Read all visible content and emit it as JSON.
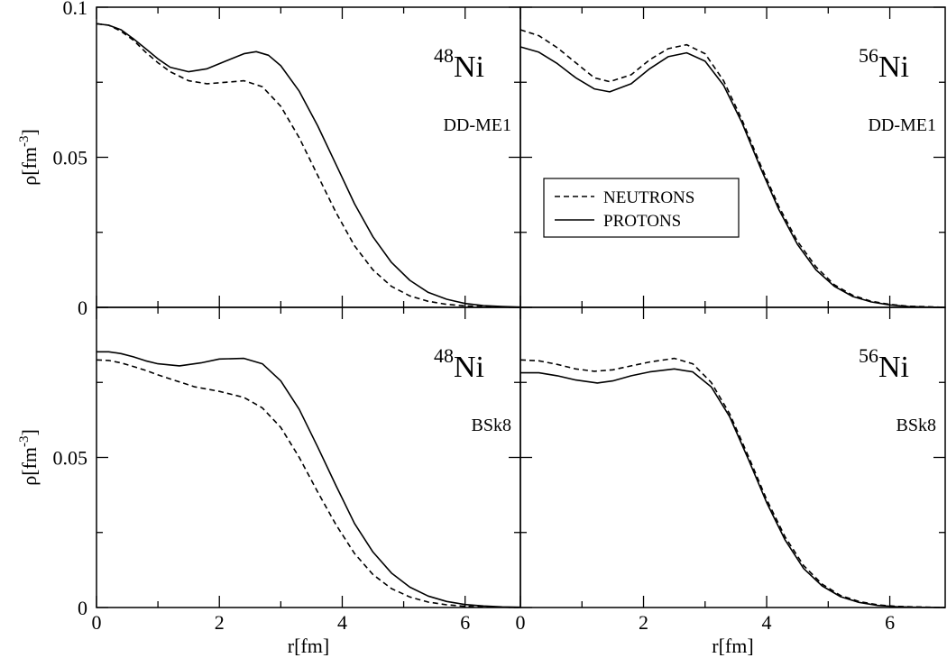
{
  "chart_data": [
    {
      "type": "line",
      "panel": "top-left",
      "mass_number": "48",
      "element": "Ni",
      "model": "DD-ME1",
      "ylabel_base": "ρ[fm",
      "ylabel_exp": "-3",
      "ylabel_close": "]",
      "xlabel": "",
      "xlim": [
        0,
        6.9
      ],
      "ylim": [
        0,
        0.1
      ],
      "xticks": [],
      "yticks": [
        "0.1",
        "0.05",
        "0"
      ],
      "grid": false,
      "series": [
        {
          "name": "NEUTRONS",
          "style": "dashed",
          "x": [
            0.0,
            0.2,
            0.4,
            0.6,
            0.8,
            1.0,
            1.2,
            1.5,
            1.8,
            2.1,
            2.4,
            2.7,
            3.0,
            3.3,
            3.6,
            3.9,
            4.2,
            4.5,
            4.8,
            5.1,
            5.4,
            5.7,
            6.0,
            6.3,
            6.6,
            6.9
          ],
          "y": [
            0.0945,
            0.094,
            0.092,
            0.089,
            0.085,
            0.0815,
            0.0785,
            0.0755,
            0.0745,
            0.075,
            0.0755,
            0.0735,
            0.067,
            0.0565,
            0.044,
            0.0315,
            0.0205,
            0.0125,
            0.007,
            0.0038,
            0.002,
            0.001,
            0.0005,
            0.0002,
            0.0001,
            0.0
          ]
        },
        {
          "name": "PROTONS",
          "style": "solid",
          "x": [
            0.0,
            0.2,
            0.4,
            0.6,
            0.8,
            1.0,
            1.2,
            1.5,
            1.8,
            2.1,
            2.4,
            2.6,
            2.8,
            3.0,
            3.3,
            3.6,
            3.9,
            4.2,
            4.5,
            4.8,
            5.1,
            5.4,
            5.7,
            6.0,
            6.3,
            6.6,
            6.9
          ],
          "y": [
            0.0945,
            0.094,
            0.0925,
            0.0895,
            0.0862,
            0.0828,
            0.08,
            0.0785,
            0.0795,
            0.082,
            0.0845,
            0.0852,
            0.084,
            0.0805,
            0.072,
            0.0605,
            0.0475,
            0.0345,
            0.0235,
            0.015,
            0.009,
            0.005,
            0.0027,
            0.0013,
            0.0006,
            0.0003,
            0.0001
          ]
        }
      ]
    },
    {
      "type": "line",
      "panel": "top-right",
      "mass_number": "56",
      "element": "Ni",
      "model": "DD-ME1",
      "xlabel": "",
      "xlim": [
        0,
        6.9
      ],
      "ylim": [
        0,
        0.1
      ],
      "xticks": [],
      "grid": false,
      "legend": {
        "placement": "center-left",
        "entries": [
          "NEUTRONS",
          "PROTONS"
        ]
      },
      "series": [
        {
          "name": "NEUTRONS",
          "style": "dashed",
          "x": [
            0.0,
            0.3,
            0.6,
            0.9,
            1.2,
            1.45,
            1.8,
            2.1,
            2.4,
            2.7,
            3.0,
            3.3,
            3.6,
            3.9,
            4.2,
            4.5,
            4.8,
            5.1,
            5.4,
            5.7,
            6.0,
            6.3,
            6.6,
            6.9
          ],
          "y": [
            0.0925,
            0.0905,
            0.0865,
            0.0815,
            0.0765,
            0.0752,
            0.0775,
            0.0825,
            0.0862,
            0.0875,
            0.0845,
            0.0755,
            0.0625,
            0.0475,
            0.0335,
            0.022,
            0.0135,
            0.0075,
            0.004,
            0.002,
            0.001,
            0.0004,
            0.0002,
            0.0
          ]
        },
        {
          "name": "PROTONS",
          "style": "solid",
          "x": [
            0.0,
            0.3,
            0.6,
            0.9,
            1.2,
            1.45,
            1.8,
            2.1,
            2.4,
            2.7,
            3.0,
            3.3,
            3.6,
            3.9,
            4.2,
            4.5,
            4.8,
            5.1,
            5.4,
            5.7,
            6.0,
            6.3,
            6.6,
            6.9
          ],
          "y": [
            0.0868,
            0.085,
            0.0812,
            0.0765,
            0.0728,
            0.0718,
            0.0745,
            0.0795,
            0.0835,
            0.0848,
            0.082,
            0.074,
            0.0615,
            0.0465,
            0.0325,
            0.021,
            0.0125,
            0.007,
            0.0036,
            0.0018,
            0.0008,
            0.0003,
            0.0001,
            0.0
          ]
        }
      ]
    },
    {
      "type": "line",
      "panel": "bottom-left",
      "mass_number": "48",
      "element": "Ni",
      "model": "BSk8",
      "ylabel_base": "ρ[fm",
      "ylabel_exp": "-3",
      "ylabel_close": "]",
      "xlabel": "r[fm]",
      "xlim": [
        0,
        6.9
      ],
      "ylim": [
        0,
        0.1
      ],
      "xticks": [
        "0",
        "2",
        "4",
        "6"
      ],
      "yticks": [
        "0.05",
        "0"
      ],
      "grid": false,
      "series": [
        {
          "name": "NEUTRONS",
          "style": "dashed",
          "x": [
            0.0,
            0.2,
            0.4,
            0.6,
            0.8,
            1.0,
            1.3,
            1.6,
            2.0,
            2.4,
            2.7,
            3.0,
            3.3,
            3.6,
            3.9,
            4.2,
            4.5,
            4.8,
            5.1,
            5.4,
            5.7,
            6.0,
            6.3,
            6.6,
            6.9
          ],
          "y": [
            0.0825,
            0.0823,
            0.0815,
            0.0803,
            0.079,
            0.0775,
            0.0755,
            0.0735,
            0.072,
            0.07,
            0.0665,
            0.06,
            0.05,
            0.0385,
            0.0275,
            0.018,
            0.011,
            0.0063,
            0.0035,
            0.0018,
            0.0009,
            0.0004,
            0.0002,
            0.0001,
            0.0
          ]
        },
        {
          "name": "PROTONS",
          "style": "solid",
          "x": [
            0.0,
            0.2,
            0.4,
            0.6,
            0.8,
            1.0,
            1.35,
            1.7,
            2.0,
            2.4,
            2.7,
            3.0,
            3.3,
            3.6,
            3.9,
            4.2,
            4.5,
            4.8,
            5.1,
            5.4,
            5.7,
            6.0,
            6.3,
            6.6,
            6.9
          ],
          "y": [
            0.0852,
            0.0852,
            0.0846,
            0.0835,
            0.0822,
            0.0812,
            0.0805,
            0.0815,
            0.0828,
            0.083,
            0.0812,
            0.0755,
            0.066,
            0.0535,
            0.0405,
            0.028,
            0.0185,
            0.0115,
            0.0068,
            0.0038,
            0.002,
            0.001,
            0.0005,
            0.0002,
            0.0001
          ]
        }
      ]
    },
    {
      "type": "line",
      "panel": "bottom-right",
      "mass_number": "56",
      "element": "Ni",
      "model": "BSk8",
      "xlabel": "r[fm]",
      "xlim": [
        0,
        6.9
      ],
      "ylim": [
        0,
        0.1
      ],
      "xticks": [
        "0",
        "2",
        "4",
        "6"
      ],
      "grid": false,
      "series": [
        {
          "name": "NEUTRONS",
          "style": "dashed",
          "x": [
            0.0,
            0.3,
            0.6,
            0.9,
            1.2,
            1.5,
            1.8,
            2.1,
            2.5,
            2.8,
            3.1,
            3.4,
            3.7,
            4.0,
            4.3,
            4.6,
            4.9,
            5.2,
            5.5,
            5.8,
            6.1,
            6.4,
            6.9
          ],
          "y": [
            0.0825,
            0.0822,
            0.081,
            0.0795,
            0.0787,
            0.0792,
            0.0805,
            0.0818,
            0.083,
            0.0812,
            0.075,
            0.0645,
            0.0505,
            0.036,
            0.0235,
            0.014,
            0.0078,
            0.004,
            0.002,
            0.0009,
            0.0004,
            0.0002,
            0.0
          ]
        },
        {
          "name": "PROTONS",
          "style": "solid",
          "x": [
            0.0,
            0.3,
            0.6,
            0.9,
            1.25,
            1.5,
            1.8,
            2.1,
            2.5,
            2.8,
            3.1,
            3.4,
            3.7,
            4.0,
            4.3,
            4.6,
            4.9,
            5.2,
            5.5,
            5.8,
            6.1,
            6.4,
            6.9
          ],
          "y": [
            0.0782,
            0.0782,
            0.0772,
            0.0758,
            0.0748,
            0.0755,
            0.0772,
            0.0785,
            0.0795,
            0.0785,
            0.0735,
            0.0635,
            0.0495,
            0.035,
            0.0225,
            0.013,
            0.0072,
            0.0036,
            0.0017,
            0.0007,
            0.0003,
            0.0001,
            0.0
          ]
        }
      ]
    }
  ]
}
